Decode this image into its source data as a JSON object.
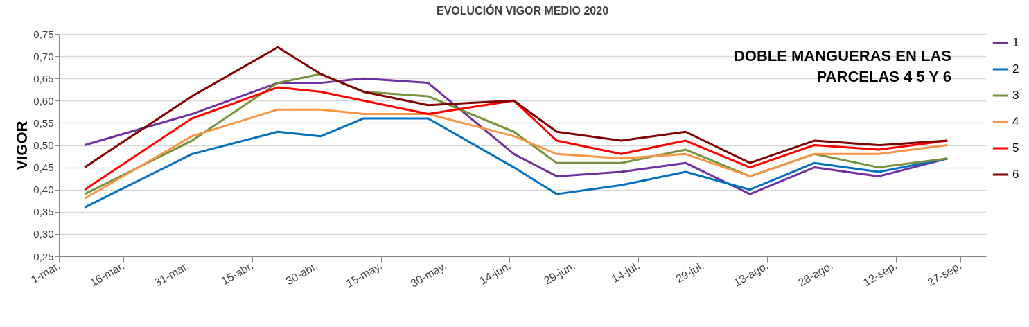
{
  "chart_data": {
    "type": "line",
    "title": "EVOLUCIÓN VIGOR MEDIO 2020",
    "ylabel": "VIGOR",
    "annotations": [
      "DOBLE MANGUERAS EN LAS PARCELAS 4 5 Y 6"
    ],
    "x": [
      "2020-03-07",
      "2020-04-01",
      "2020-04-21",
      "2020-05-01",
      "2020-05-11",
      "2020-05-26",
      "2020-06-15",
      "2020-06-25",
      "2020-07-10",
      "2020-07-25",
      "2020-08-09",
      "2020-08-24",
      "2020-09-08",
      "2020-09-24"
    ],
    "series": [
      {
        "name": "1",
        "color": "#7030a0",
        "values": [
          0.5,
          0.57,
          0.64,
          0.64,
          0.65,
          0.64,
          0.48,
          0.43,
          0.44,
          0.46,
          0.39,
          0.45,
          0.43,
          0.47
        ]
      },
      {
        "name": "2",
        "color": "#0070c0",
        "values": [
          0.36,
          0.48,
          0.53,
          0.52,
          0.56,
          0.56,
          0.45,
          0.39,
          0.41,
          0.44,
          0.4,
          0.46,
          0.44,
          0.47
        ]
      },
      {
        "name": "3",
        "color": "#77933c",
        "values": [
          0.39,
          0.51,
          0.64,
          0.66,
          0.62,
          0.61,
          0.53,
          0.46,
          0.46,
          0.49,
          0.43,
          0.48,
          0.45,
          0.47
        ]
      },
      {
        "name": "4",
        "color": "#f79646",
        "values": [
          0.38,
          0.52,
          0.58,
          0.58,
          0.57,
          0.57,
          0.52,
          0.48,
          0.47,
          0.48,
          0.43,
          0.48,
          0.48,
          0.5
        ]
      },
      {
        "name": "5",
        "color": "#ff0000",
        "values": [
          0.4,
          0.56,
          0.63,
          0.62,
          0.6,
          0.57,
          0.6,
          0.51,
          0.48,
          0.51,
          0.45,
          0.5,
          0.49,
          0.51
        ]
      },
      {
        "name": "6",
        "color": "#800000",
        "values": [
          0.45,
          0.61,
          0.72,
          0.66,
          0.62,
          0.59,
          0.6,
          0.53,
          0.51,
          0.53,
          0.46,
          0.51,
          0.5,
          0.51
        ]
      }
    ],
    "xlim": [
      "2020-03-01",
      "2020-10-03"
    ],
    "xticks": [
      {
        "value": "2020-03-01",
        "label": "1-mar."
      },
      {
        "value": "2020-03-16",
        "label": "16-mar."
      },
      {
        "value": "2020-03-31",
        "label": "31-mar."
      },
      {
        "value": "2020-04-15",
        "label": "15-abr."
      },
      {
        "value": "2020-04-30",
        "label": "30-abr."
      },
      {
        "value": "2020-05-15",
        "label": "15-may."
      },
      {
        "value": "2020-05-30",
        "label": "30-may."
      },
      {
        "value": "2020-06-14",
        "label": "14-jun."
      },
      {
        "value": "2020-06-29",
        "label": "29-jun."
      },
      {
        "value": "2020-07-14",
        "label": "14-jul."
      },
      {
        "value": "2020-07-29",
        "label": "29-jul."
      },
      {
        "value": "2020-08-13",
        "label": "13-ago."
      },
      {
        "value": "2020-08-28",
        "label": "28-ago."
      },
      {
        "value": "2020-09-12",
        "label": "12-sep."
      },
      {
        "value": "2020-09-27",
        "label": "27-sep."
      }
    ],
    "ylim": [
      0.25,
      0.75
    ],
    "yticks": [
      {
        "value": 0.25,
        "label": "0,25"
      },
      {
        "value": 0.3,
        "label": "0,30"
      },
      {
        "value": 0.35,
        "label": "0,35"
      },
      {
        "value": 0.4,
        "label": "0,40"
      },
      {
        "value": 0.45,
        "label": "0,45"
      },
      {
        "value": 0.5,
        "label": "0,50"
      },
      {
        "value": 0.55,
        "label": "0,55"
      },
      {
        "value": 0.6,
        "label": "0,60"
      },
      {
        "value": 0.65,
        "label": "0,65"
      },
      {
        "value": 0.7,
        "label": "0,70"
      },
      {
        "value": 0.75,
        "label": "0,75"
      }
    ],
    "grid": "y",
    "legend": "right",
    "line_style": "solid"
  }
}
